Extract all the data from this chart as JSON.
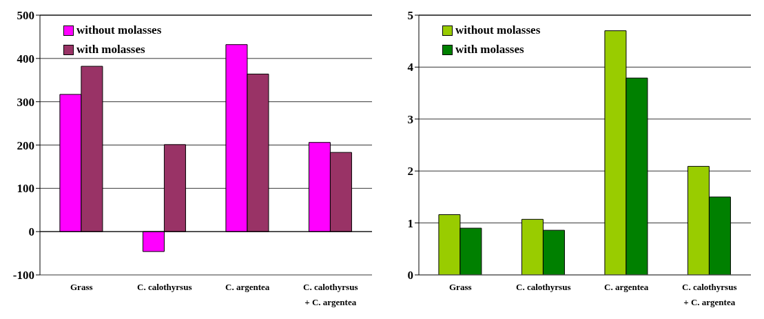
{
  "chart_data": [
    {
      "type": "bar",
      "categories": [
        "Grass",
        "C. calothyrsus",
        "C. argentea",
        "C. calothyrsus\n+ C. argentea"
      ],
      "series": [
        {
          "name": "without molasses",
          "color": "#ff00ff",
          "values": [
            317,
            -46,
            432,
            206
          ]
        },
        {
          "name": "with molasses",
          "color": "#993366",
          "values": [
            382,
            201,
            364,
            183
          ]
        }
      ],
      "ylim": [
        -100,
        500
      ],
      "yticks": [
        -100,
        0,
        100,
        200,
        300,
        400,
        500
      ],
      "grid": "y",
      "legend": "top left"
    },
    {
      "type": "bar",
      "categories": [
        "Grass",
        "C. calothyrsus",
        "C. argentea",
        "C. calothyrsus\n+ C. argentea"
      ],
      "series": [
        {
          "name": "without molasses",
          "color": "#99cc00",
          "values": [
            1.16,
            1.07,
            4.7,
            2.09
          ]
        },
        {
          "name": "with molasses",
          "color": "#008000",
          "values": [
            0.9,
            0.86,
            3.79,
            1.5
          ]
        }
      ],
      "ylim": [
        0,
        5
      ],
      "yticks": [
        0,
        1,
        2,
        3,
        4,
        5
      ],
      "grid": "y",
      "legend": "top left"
    }
  ]
}
